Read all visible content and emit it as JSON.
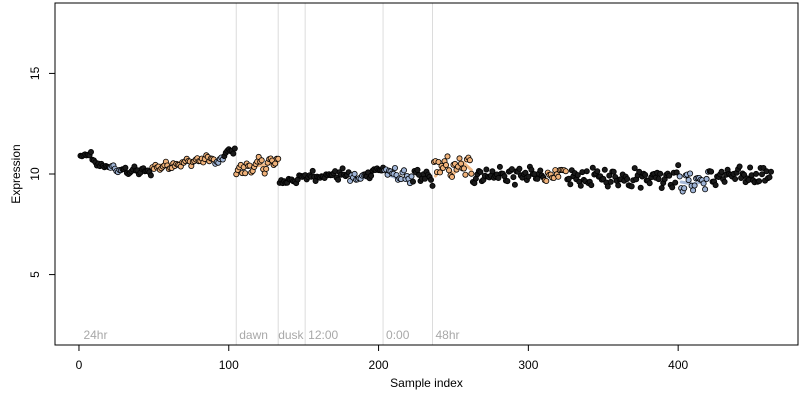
{
  "chart_data": {
    "type": "scatter",
    "xlabel": "Sample index",
    "ylabel": "Expression",
    "xlim": [
      -16,
      480
    ],
    "ylim": [
      1.5,
      18.5
    ],
    "xticks": [
      0,
      100,
      200,
      300,
      400
    ],
    "yticks": [
      5,
      10,
      15
    ],
    "grid": false,
    "legend": "none",
    "point_stroke": "#000000",
    "colors": {
      "black": "#1a1a1a",
      "orange": "#f0b27a",
      "blue": "#9fb4d6"
    },
    "vlines": [
      105,
      133,
      151,
      203,
      236
    ],
    "vline_color": "#dcdcdc",
    "annotations": [
      {
        "text": "24hr",
        "x": 3
      },
      {
        "text": "dawn",
        "x": 107
      },
      {
        "text": "dusk",
        "x": 133
      },
      {
        "text": "12:00",
        "x": 153
      },
      {
        "text": "0:00",
        "x": 205
      },
      {
        "text": "48hr",
        "x": 238
      }
    ],
    "annotation_y": 2.0,
    "segments": [
      {
        "x0": 1,
        "x1": 8,
        "y0": 10.85,
        "y1": 11.0,
        "noise": 0.08,
        "color": "black"
      },
      {
        "x0": 9,
        "x1": 20,
        "y0": 10.6,
        "y1": 10.3,
        "noise": 0.12,
        "color": "black"
      },
      {
        "x0": 21,
        "x1": 28,
        "y0": 10.4,
        "y1": 10.1,
        "noise": 0.12,
        "color": "blue"
      },
      {
        "x0": 29,
        "x1": 48,
        "y0": 10.2,
        "y1": 10.1,
        "noise": 0.15,
        "color": "black"
      },
      {
        "x0": 49,
        "x1": 90,
        "y0": 10.3,
        "y1": 10.8,
        "noise": 0.15,
        "color": "orange"
      },
      {
        "x0": 91,
        "x1": 96,
        "y0": 10.4,
        "y1": 10.8,
        "noise": 0.15,
        "color": "blue"
      },
      {
        "x0": 97,
        "x1": 104,
        "y0": 11.0,
        "y1": 11.2,
        "noise": 0.12,
        "color": "black"
      },
      {
        "x0": 105,
        "x1": 133,
        "y0": 10.2,
        "y1": 10.6,
        "noise": 0.3,
        "color": "orange"
      },
      {
        "x0": 134,
        "x1": 150,
        "y0": 9.6,
        "y1": 9.8,
        "noise": 0.15,
        "color": "black"
      },
      {
        "x0": 151,
        "x1": 180,
        "y0": 9.9,
        "y1": 10.0,
        "noise": 0.2,
        "color": "black"
      },
      {
        "x0": 181,
        "x1": 190,
        "y0": 9.8,
        "y1": 9.8,
        "noise": 0.2,
        "color": "blue"
      },
      {
        "x0": 191,
        "x1": 203,
        "y0": 10.0,
        "y1": 10.3,
        "noise": 0.2,
        "color": "black"
      },
      {
        "x0": 204,
        "x1": 222,
        "y0": 10.1,
        "y1": 9.8,
        "noise": 0.25,
        "color": "blue"
      },
      {
        "x0": 223,
        "x1": 236,
        "y0": 9.8,
        "y1": 9.8,
        "noise": 0.3,
        "color": "black"
      },
      {
        "x0": 237,
        "x1": 262,
        "y0": 10.3,
        "y1": 10.3,
        "noise": 0.45,
        "color": "orange"
      },
      {
        "x0": 263,
        "x1": 310,
        "y0": 10.0,
        "y1": 9.9,
        "noise": 0.35,
        "color": "black"
      },
      {
        "x0": 311,
        "x1": 325,
        "y0": 10.0,
        "y1": 9.9,
        "noise": 0.3,
        "color": "orange"
      },
      {
        "x0": 326,
        "x1": 400,
        "y0": 9.8,
        "y1": 9.9,
        "noise": 0.4,
        "color": "black"
      },
      {
        "x0": 401,
        "x1": 420,
        "y0": 9.6,
        "y1": 9.7,
        "noise": 0.35,
        "color": "blue"
      },
      {
        "x0": 421,
        "x1": 462,
        "y0": 9.8,
        "y1": 10.0,
        "noise": 0.35,
        "color": "black"
      }
    ],
    "curves": [
      {
        "color": "orange",
        "x": [
          50,
          60,
          70,
          80,
          90
        ],
        "y": [
          10.4,
          10.5,
          10.6,
          10.7,
          10.8
        ]
      },
      {
        "color": "orange",
        "x": [
          108,
          118,
          128,
          133
        ],
        "y": [
          10.3,
          10.4,
          10.5,
          10.6
        ]
      },
      {
        "color": "orange",
        "x": [
          238,
          244,
          250,
          256,
          262
        ],
        "y": [
          9.9,
          10.5,
          10.0,
          10.6,
          10.2
        ]
      },
      {
        "color": "blue",
        "x": [
          22,
          26,
          28
        ],
        "y": [
          10.4,
          10.2,
          10.1
        ]
      },
      {
        "color": "blue",
        "x": [
          182,
          186,
          190
        ],
        "y": [
          9.8,
          9.7,
          9.8
        ]
      },
      {
        "color": "blue",
        "x": [
          205,
          212,
          222
        ],
        "y": [
          10.0,
          9.8,
          9.6
        ]
      },
      {
        "color": "blue",
        "x": [
          402,
          410,
          420
        ],
        "y": [
          9.6,
          9.5,
          9.7
        ]
      }
    ]
  }
}
